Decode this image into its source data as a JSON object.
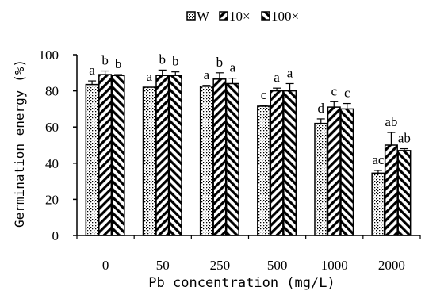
{
  "chart_data": {
    "type": "bar",
    "xlabel": "Pb concentration (mg/L)",
    "ylabel": "Germination energy (%)",
    "ylim": [
      0,
      100
    ],
    "yticks": [
      0,
      20,
      40,
      60,
      80,
      100
    ],
    "categories": [
      "0",
      "50",
      "250",
      "500",
      "1000",
      "2000"
    ],
    "legend_position": "top",
    "series": [
      {
        "name": "W",
        "pattern": "dots",
        "values": [
          83.5,
          82,
          82.5,
          71.5,
          62,
          34.5
        ],
        "errors": [
          2,
          0,
          0.5,
          0.5,
          2.5,
          1.5
        ],
        "labels": [
          "a",
          "a",
          "a",
          "c",
          "d",
          "ac"
        ]
      },
      {
        "name": "10×",
        "pattern": "diag-backslash",
        "values": [
          89,
          88.5,
          86.5,
          80,
          71,
          50
        ],
        "errors": [
          2,
          3,
          3.5,
          1.5,
          3,
          7
        ],
        "labels": [
          "b",
          "b",
          "b",
          "a",
          "c",
          "ab"
        ]
      },
      {
        "name": "100×",
        "pattern": "diag-slash",
        "values": [
          88.5,
          88.5,
          84,
          80,
          70,
          47
        ],
        "errors": [
          0.5,
          2,
          3,
          4,
          3,
          1
        ],
        "labels": [
          "b",
          "b",
          "a",
          "a",
          "c",
          "ab"
        ]
      }
    ]
  }
}
